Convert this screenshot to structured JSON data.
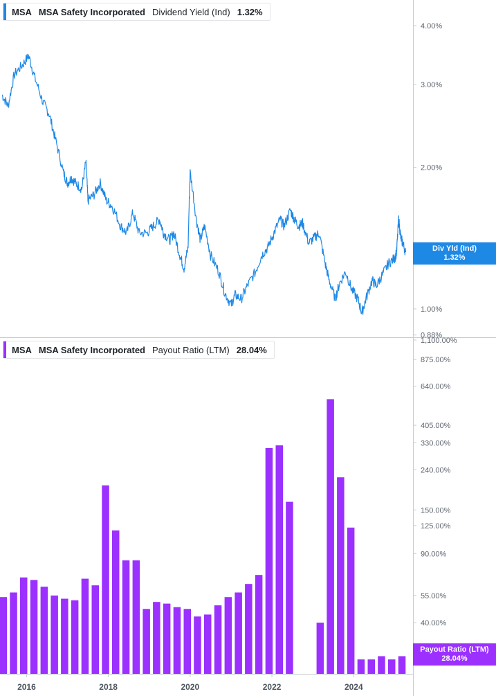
{
  "colors": {
    "yield_line": "#1e88e5",
    "payout_bar": "#9b30ff",
    "axis": "#c8cbd0",
    "tick_text": "#5f6670",
    "year_text": "#4d545c"
  },
  "top_legend": {
    "ticker": "MSA",
    "company": "MSA Safety Incorporated",
    "metric": "Dividend Yield (Ind)",
    "value": "1.32%"
  },
  "bottom_legend": {
    "ticker": "MSA",
    "company": "MSA Safety Incorporated",
    "metric": "Payout Ratio (LTM)",
    "value": "28.04%"
  },
  "top_tag": {
    "label": "Div Yld (Ind)",
    "value": "1.32%"
  },
  "bottom_tag": {
    "label": "Payout Ratio (LTM)",
    "value": "28.04%"
  },
  "chart_data": [
    {
      "type": "line",
      "scale": "log",
      "x_range": [
        2015.35,
        2025.45
      ],
      "y_ticks": [
        "4.00%",
        "3.00%",
        "2.00%",
        "1.00%",
        "0.88%"
      ],
      "y_tick_values": [
        4.0,
        3.0,
        2.0,
        1.0,
        0.88
      ],
      "x": [
        2015.4,
        2015.55,
        2015.7,
        2015.9,
        2016.05,
        2016.2,
        2016.4,
        2016.55,
        2016.7,
        2016.9,
        2017.0,
        2017.1,
        2017.2,
        2017.35,
        2017.45,
        2017.5,
        2017.65,
        2017.8,
        2017.95,
        2018.1,
        2018.3,
        2018.45,
        2018.6,
        2018.75,
        2018.95,
        2019.1,
        2019.25,
        2019.35,
        2019.5,
        2019.6,
        2019.75,
        2019.85,
        2019.95,
        2020.0,
        2020.15,
        2020.25,
        2020.35,
        2020.5,
        2020.7,
        2020.85,
        2021.0,
        2021.1,
        2021.25,
        2021.4,
        2021.6,
        2021.75,
        2021.9,
        2022.05,
        2022.2,
        2022.3,
        2022.45,
        2022.55,
        2022.65,
        2022.75,
        2022.9,
        2023.05,
        2023.15,
        2023.3,
        2023.4,
        2023.55,
        2023.65,
        2023.8,
        2023.95,
        2024.1,
        2024.2,
        2024.3,
        2024.45,
        2024.55,
        2024.7,
        2024.85,
        2025.0,
        2025.05,
        2025.1,
        2025.15,
        2025.2,
        2025.27
      ],
      "y": [
        2.85,
        2.7,
        3.15,
        3.3,
        3.45,
        3.1,
        2.75,
        2.6,
        2.3,
        1.95,
        1.85,
        1.9,
        1.85,
        1.8,
        2.05,
        1.7,
        1.75,
        1.85,
        1.7,
        1.65,
        1.5,
        1.45,
        1.6,
        1.45,
        1.45,
        1.5,
        1.55,
        1.45,
        1.4,
        1.45,
        1.3,
        1.22,
        1.35,
        1.95,
        1.55,
        1.4,
        1.5,
        1.3,
        1.2,
        1.08,
        1.02,
        1.07,
        1.05,
        1.12,
        1.2,
        1.3,
        1.35,
        1.45,
        1.55,
        1.5,
        1.62,
        1.55,
        1.5,
        1.52,
        1.38,
        1.42,
        1.45,
        1.25,
        1.15,
        1.05,
        1.13,
        1.2,
        1.1,
        1.05,
        0.98,
        1.05,
        1.15,
        1.12,
        1.18,
        1.25,
        1.28,
        1.32,
        1.55,
        1.42,
        1.38,
        1.32
      ]
    },
    {
      "type": "bar",
      "scale": "log",
      "x_range": [
        2015.35,
        2025.45
      ],
      "y_ticks": [
        "1,100.00%",
        "875.00%",
        "640.00%",
        "405.00%",
        "330.00%",
        "240.00%",
        "150.00%",
        "125.00%",
        "90.00%",
        "55.00%",
        "40.00%",
        "25.00%"
      ],
      "y_tick_values": [
        1100,
        875,
        640,
        405,
        330,
        240,
        150,
        125,
        90,
        55,
        40,
        25
      ],
      "x_ticks": [
        "2016",
        "2018",
        "2020",
        "2022",
        "2024"
      ],
      "x_tick_values": [
        2016.0,
        2018.0,
        2020.0,
        2022.0,
        2024.0
      ],
      "x": [
        2015.43,
        2015.68,
        2015.93,
        2016.18,
        2016.43,
        2016.68,
        2016.93,
        2017.18,
        2017.43,
        2017.68,
        2017.93,
        2018.18,
        2018.43,
        2018.68,
        2018.93,
        2019.18,
        2019.43,
        2019.68,
        2019.93,
        2020.18,
        2020.43,
        2020.68,
        2020.93,
        2021.18,
        2021.43,
        2021.68,
        2021.93,
        2022.18,
        2022.43,
        2022.68,
        2022.93,
        2023.18,
        2023.43,
        2023.68,
        2023.93,
        2024.18,
        2024.43,
        2024.68,
        2024.93,
        2025.18
      ],
      "values": [
        54,
        57,
        68,
        66,
        61,
        55,
        53,
        52,
        67,
        62,
        200,
        118,
        83,
        83,
        47,
        51,
        50,
        48,
        47,
        43,
        44,
        49,
        54,
        57,
        63,
        70,
        310,
        320,
        165,
        null,
        null,
        40,
        550,
        220,
        122,
        26,
        26,
        27,
        26,
        27
      ]
    }
  ]
}
